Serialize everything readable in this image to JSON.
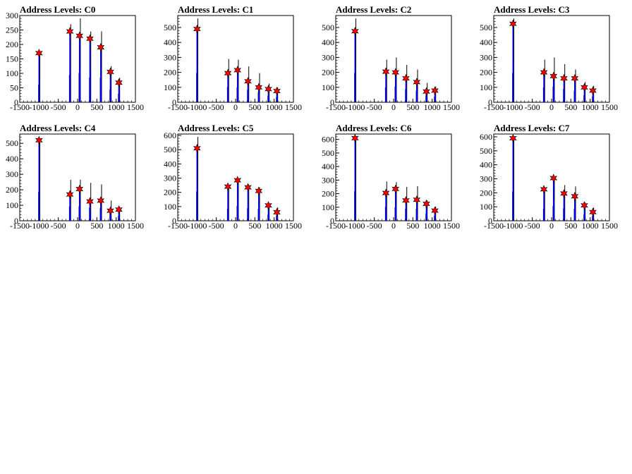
{
  "panels": [
    {
      "id": "C0",
      "title": "Address Levels: C0",
      "ylim": [
        0,
        300
      ],
      "yticks": [
        0,
        50,
        100,
        150,
        200,
        250,
        300
      ],
      "peaks": [
        {
          "x": -1000,
          "y": 170
        },
        {
          "x": -200,
          "y": 245
        },
        {
          "x": 50,
          "y": 230
        },
        {
          "x": 320,
          "y": 220
        },
        {
          "x": 600,
          "y": 190
        },
        {
          "x": 850,
          "y": 105
        },
        {
          "x": 1070,
          "y": 68
        }
      ],
      "black": [
        {
          "x": -1000,
          "y": 175
        },
        {
          "x": -200,
          "y": 270
        },
        {
          "x": 50,
          "y": 290
        },
        {
          "x": 320,
          "y": 245
        },
        {
          "x": 600,
          "y": 245
        },
        {
          "x": 850,
          "y": 125
        },
        {
          "x": 1070,
          "y": 85
        }
      ]
    },
    {
      "id": "C1",
      "title": "Address Levels: C1",
      "ylim": [
        0,
        580
      ],
      "yticks": [
        0,
        100,
        200,
        300,
        400,
        500
      ],
      "peaks": [
        {
          "x": -1000,
          "y": 490
        },
        {
          "x": -200,
          "y": 195
        },
        {
          "x": 50,
          "y": 215
        },
        {
          "x": 320,
          "y": 140
        },
        {
          "x": 600,
          "y": 100
        },
        {
          "x": 850,
          "y": 88
        },
        {
          "x": 1070,
          "y": 75
        }
      ],
      "black": [
        {
          "x": -1000,
          "y": 560
        },
        {
          "x": -200,
          "y": 290
        },
        {
          "x": 50,
          "y": 285
        },
        {
          "x": 320,
          "y": 240
        },
        {
          "x": 600,
          "y": 195
        },
        {
          "x": 850,
          "y": 125
        },
        {
          "x": 1070,
          "y": 100
        }
      ]
    },
    {
      "id": "C2",
      "title": "Address Levels: C2",
      "ylim": [
        0,
        580
      ],
      "yticks": [
        0,
        100,
        200,
        300,
        400,
        500
      ],
      "peaks": [
        {
          "x": -1000,
          "y": 475
        },
        {
          "x": -200,
          "y": 205
        },
        {
          "x": 50,
          "y": 200
        },
        {
          "x": 320,
          "y": 160
        },
        {
          "x": 600,
          "y": 135
        },
        {
          "x": 850,
          "y": 72
        },
        {
          "x": 1070,
          "y": 78
        }
      ],
      "black": [
        {
          "x": -1000,
          "y": 560
        },
        {
          "x": -200,
          "y": 285
        },
        {
          "x": 50,
          "y": 300
        },
        {
          "x": 320,
          "y": 250
        },
        {
          "x": 600,
          "y": 220
        },
        {
          "x": 850,
          "y": 130
        },
        {
          "x": 1070,
          "y": 105
        }
      ]
    },
    {
      "id": "C3",
      "title": "Address Levels: C3",
      "ylim": [
        0,
        580
      ],
      "yticks": [
        0,
        100,
        200,
        300,
        400,
        500
      ],
      "peaks": [
        {
          "x": -1000,
          "y": 525
        },
        {
          "x": -200,
          "y": 200
        },
        {
          "x": 50,
          "y": 175
        },
        {
          "x": 320,
          "y": 160
        },
        {
          "x": 600,
          "y": 160
        },
        {
          "x": 850,
          "y": 100
        },
        {
          "x": 1070,
          "y": 78
        }
      ],
      "black": [
        {
          "x": -1000,
          "y": 560
        },
        {
          "x": -200,
          "y": 285
        },
        {
          "x": 50,
          "y": 300
        },
        {
          "x": 320,
          "y": 255
        },
        {
          "x": 600,
          "y": 220
        },
        {
          "x": 850,
          "y": 135
        },
        {
          "x": 1070,
          "y": 110
        }
      ]
    },
    {
      "id": "C4",
      "title": "Address Levels: C4",
      "ylim": [
        0,
        560
      ],
      "yticks": [
        0,
        100,
        200,
        300,
        400,
        500
      ],
      "peaks": [
        {
          "x": -1000,
          "y": 520
        },
        {
          "x": -200,
          "y": 170
        },
        {
          "x": 50,
          "y": 205
        },
        {
          "x": 320,
          "y": 125
        },
        {
          "x": 600,
          "y": 130
        },
        {
          "x": 850,
          "y": 65
        },
        {
          "x": 1070,
          "y": 72
        }
      ],
      "black": [
        {
          "x": -1000,
          "y": 530
        },
        {
          "x": -200,
          "y": 265
        },
        {
          "x": 50,
          "y": 265
        },
        {
          "x": 320,
          "y": 245
        },
        {
          "x": 600,
          "y": 235
        },
        {
          "x": 850,
          "y": 130
        },
        {
          "x": 1070,
          "y": 90
        }
      ]
    },
    {
      "id": "C5",
      "title": "Address Levels: C5",
      "ylim": [
        0,
        610
      ],
      "yticks": [
        0,
        100,
        200,
        300,
        400,
        500,
        600
      ],
      "peaks": [
        {
          "x": -1000,
          "y": 510
        },
        {
          "x": -200,
          "y": 240
        },
        {
          "x": 50,
          "y": 285
        },
        {
          "x": 320,
          "y": 235
        },
        {
          "x": 600,
          "y": 210
        },
        {
          "x": 850,
          "y": 108
        },
        {
          "x": 1070,
          "y": 60
        }
      ],
      "black": [
        {
          "x": -1000,
          "y": 590
        },
        {
          "x": -200,
          "y": 240
        },
        {
          "x": 50,
          "y": 300
        },
        {
          "x": 320,
          "y": 255
        },
        {
          "x": 600,
          "y": 235
        },
        {
          "x": 850,
          "y": 125
        },
        {
          "x": 1070,
          "y": 95
        }
      ]
    },
    {
      "id": "C6",
      "title": "Address Levels: C6",
      "ylim": [
        0,
        640
      ],
      "yticks": [
        0,
        100,
        200,
        300,
        400,
        500,
        600
      ],
      "peaks": [
        {
          "x": -1000,
          "y": 610
        },
        {
          "x": -200,
          "y": 205
        },
        {
          "x": 50,
          "y": 235
        },
        {
          "x": 320,
          "y": 150
        },
        {
          "x": 600,
          "y": 155
        },
        {
          "x": 850,
          "y": 125
        },
        {
          "x": 1070,
          "y": 75
        }
      ],
      "black": [
        {
          "x": -1000,
          "y": 625
        },
        {
          "x": -200,
          "y": 290
        },
        {
          "x": 50,
          "y": 285
        },
        {
          "x": 320,
          "y": 250
        },
        {
          "x": 600,
          "y": 255
        },
        {
          "x": 850,
          "y": 150
        },
        {
          "x": 1070,
          "y": 105
        }
      ]
    },
    {
      "id": "C7",
      "title": "Address Levels: C7",
      "ylim": [
        0,
        620
      ],
      "yticks": [
        0,
        100,
        200,
        300,
        400,
        500,
        600
      ],
      "peaks": [
        {
          "x": -1000,
          "y": 590
        },
        {
          "x": -200,
          "y": 225
        },
        {
          "x": 50,
          "y": 305
        },
        {
          "x": 320,
          "y": 195
        },
        {
          "x": 600,
          "y": 175
        },
        {
          "x": 850,
          "y": 110
        },
        {
          "x": 1070,
          "y": 62
        }
      ],
      "black": [
        {
          "x": -1000,
          "y": 600
        },
        {
          "x": -200,
          "y": 240
        },
        {
          "x": 50,
          "y": 300
        },
        {
          "x": 320,
          "y": 255
        },
        {
          "x": 600,
          "y": 245
        },
        {
          "x": 850,
          "y": 130
        },
        {
          "x": 1070,
          "y": 95
        }
      ]
    }
  ],
  "chart_data": {
    "type": "bar",
    "xlim": [
      -1500,
      1500
    ],
    "xticks": [
      -1500,
      -1000,
      -500,
      0,
      500,
      1000,
      1500
    ],
    "xtick_labels": [
      "-1500",
      "-1000",
      "-500",
      "0",
      "500",
      "1000",
      "1500"
    ],
    "grid": false,
    "colors": {
      "blue": "#0000ff",
      "black": "#000000",
      "marker": "#ff0000",
      "marker_edge": "#000000"
    }
  }
}
